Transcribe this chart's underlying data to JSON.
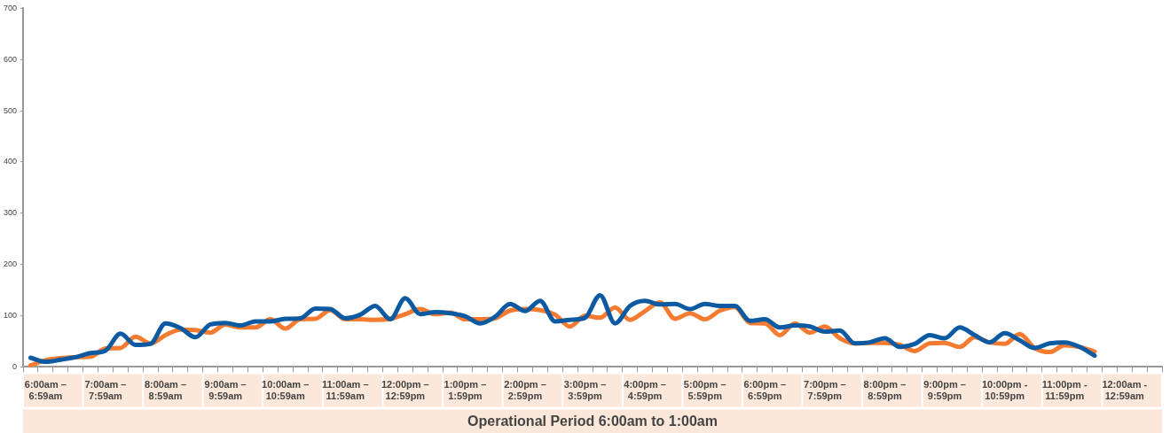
{
  "chart_data": {
    "type": "line",
    "xlabel": "Operational Period 6:00am to 1:00am",
    "categories": [
      null,
      "6:00am – 6:59am",
      null,
      null,
      null,
      "7:00am – 7:59am",
      null,
      null,
      null,
      "8:00am – 8:59am",
      null,
      null,
      null,
      "9:00am – 9:59am",
      null,
      null,
      null,
      "10:00am – 10:59am",
      null,
      null,
      null,
      "11:00am – 11:59am",
      null,
      null,
      null,
      "12:00pm – 12:59pm",
      null,
      null,
      null,
      "1:00pm – 1:59pm",
      null,
      null,
      null,
      "2:00pm – 2:59pm",
      null,
      null,
      null,
      "3:00pm – 3:59pm",
      null,
      null,
      null,
      "4:00pm – 4:59pm",
      null,
      null,
      null,
      "5:00pm – 5:59pm",
      null,
      null,
      null,
      "6:00pm – 6:59pm",
      null,
      null,
      null,
      "7:00pm – 7:59pm",
      null,
      null,
      null,
      "8:00pm – 8:59pm",
      null,
      null,
      null,
      "9:00pm – 9:59pm",
      null,
      null,
      null,
      "10:00pm - 10:59pm",
      null,
      null,
      null,
      "11:00pm - 11:59pm",
      null,
      null,
      null,
      "12:00am - 12:59am",
      null,
      null
    ],
    "series": [
      {
        "color": "#0b5aa2",
        "values": [
          18,
          10,
          14,
          19,
          27,
          32,
          65,
          43,
          45,
          85,
          76,
          58,
          83,
          86,
          81,
          89,
          89,
          94,
          95,
          114,
          113,
          95,
          102,
          119,
          93,
          134,
          103,
          107,
          105,
          99,
          85,
          98,
          123,
          109,
          129,
          89,
          92,
          96,
          140,
          85,
          119,
          129,
          122,
          123,
          113,
          123,
          119,
          119,
          90,
          93,
          77,
          81,
          79,
          69,
          71,
          46,
          48,
          56,
          39,
          45,
          62,
          56,
          77,
          62,
          48,
          66,
          52,
          37,
          46,
          48,
          39,
          22,
          null,
          null,
          null,
          null
        ]
      },
      {
        "color": "#f47b30",
        "values": [
          3,
          13,
          17,
          19,
          20,
          36,
          37,
          59,
          46,
          62,
          73,
          72,
          67,
          83,
          77,
          77,
          93,
          75,
          93,
          94,
          111,
          93,
          93,
          92,
          94,
          103,
          113,
          103,
          106,
          93,
          93,
          95,
          110,
          113,
          111,
          102,
          79,
          100,
          96,
          116,
          92,
          109,
          126,
          94,
          105,
          93,
          110,
          117,
          86,
          85,
          62,
          85,
          67,
          79,
          56,
          46,
          47,
          47,
          43,
          31,
          46,
          47,
          39,
          58,
          48,
          45,
          64,
          37,
          29,
          42,
          39,
          30,
          null,
          null,
          null,
          null
        ]
      }
    ],
    "ylim": [
      0,
      700
    ],
    "yticks": [
      0,
      100,
      200,
      300,
      400,
      500,
      600,
      700
    ],
    "grid": false,
    "legend": false,
    "marker": "none",
    "line_style": "solid"
  }
}
